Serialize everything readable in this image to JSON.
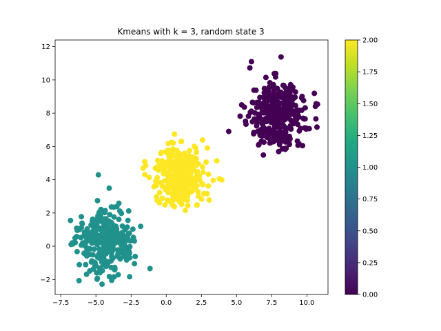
{
  "chart_data": {
    "type": "scatter",
    "title": "Kmeans with k = 3, random state 3",
    "xlabel": "",
    "ylabel": "",
    "xlim": [
      -7.9,
      11.5
    ],
    "ylim": [
      -2.9,
      12.4
    ],
    "xticks": [
      -7.5,
      -5.0,
      -2.5,
      0.0,
      2.5,
      5.0,
      7.5,
      10.0
    ],
    "xtick_labels": [
      "−7.5",
      "−5.0",
      "−2.5",
      "0.0",
      "2.5",
      "5.0",
      "7.5",
      "10.0"
    ],
    "yticks": [
      -2,
      0,
      2,
      4,
      6,
      8,
      10,
      12
    ],
    "ytick_labels": [
      "−2",
      "0",
      "2",
      "4",
      "6",
      "8",
      "10",
      "12"
    ],
    "grid": false,
    "clusters": [
      {
        "label": 0,
        "color": "#440154",
        "center": [
          7.9,
          8.0
        ],
        "spread": [
          0.95,
          0.95
        ],
        "count": 333
      },
      {
        "label": 1,
        "color": "#21918c",
        "center": [
          -4.3,
          0.3
        ],
        "spread": [
          0.95,
          0.95
        ],
        "count": 333
      },
      {
        "label": 2,
        "color": "#fde725",
        "center": [
          1.1,
          4.3
        ],
        "spread": [
          0.95,
          0.95
        ],
        "count": 334
      }
    ],
    "colorbar": {
      "min": 0.0,
      "max": 2.0,
      "ticks": [
        0.0,
        0.25,
        0.5,
        0.75,
        1.0,
        1.25,
        1.5,
        1.75,
        2.0
      ],
      "tick_labels": [
        "0.00",
        "0.25",
        "0.50",
        "0.75",
        "1.00",
        "1.25",
        "1.50",
        "1.75",
        "2.00"
      ],
      "colormap": "viridis",
      "stops": [
        "#440154",
        "#482475",
        "#414487",
        "#355f8d",
        "#2a788e",
        "#21918c",
        "#22a884",
        "#44bf70",
        "#7ad151",
        "#bddf26",
        "#fde725"
      ]
    }
  }
}
